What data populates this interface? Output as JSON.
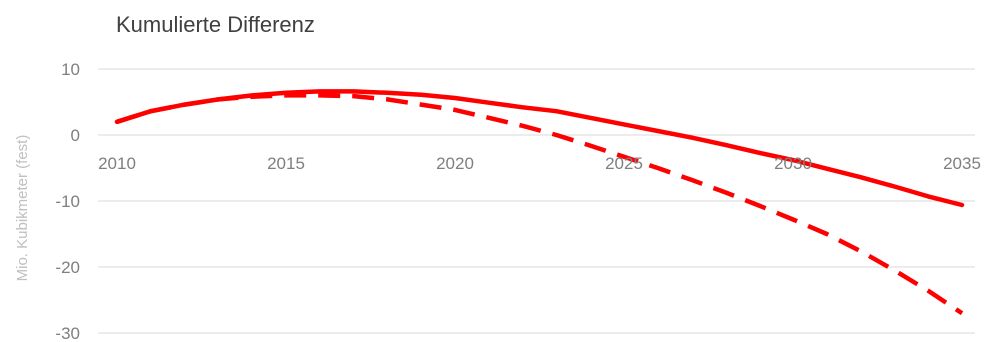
{
  "chart_data": {
    "type": "line",
    "title": "Kumulierte Differenz",
    "xlabel": "",
    "ylabel": "Mio. Kubikmeter (fest)",
    "xlim": [
      2010,
      2035
    ],
    "ylim": [
      -30,
      10
    ],
    "x_ticks": [
      "2010",
      "2015",
      "2020",
      "2025",
      "2030",
      "2035"
    ],
    "y_ticks": [
      "10",
      "0",
      "-10",
      "-20",
      "-30"
    ],
    "grid": "horizontal",
    "legend": "none",
    "x": [
      2010,
      2011,
      2012,
      2013,
      2014,
      2015,
      2016,
      2017,
      2018,
      2019,
      2020,
      2021,
      2022,
      2023,
      2024,
      2025,
      2026,
      2027,
      2028,
      2029,
      2030,
      2031,
      2032,
      2033,
      2034,
      2035
    ],
    "series": [
      {
        "style": "solid",
        "color": "#ff0000",
        "values": [
          2.0,
          3.6,
          4.6,
          5.4,
          6.0,
          6.4,
          6.6,
          6.6,
          6.4,
          6.1,
          5.6,
          4.9,
          4.2,
          3.6,
          2.6,
          1.6,
          0.6,
          -0.4,
          -1.5,
          -2.7,
          -3.8,
          -5.1,
          -6.4,
          -7.8,
          -9.3,
          -10.6
        ]
      },
      {
        "style": "dashed",
        "color": "#ff0000",
        "values": [
          2.0,
          3.6,
          4.6,
          5.4,
          5.8,
          6.0,
          6.0,
          5.9,
          5.4,
          4.6,
          3.8,
          2.6,
          1.4,
          0.0,
          -1.6,
          -3.3,
          -5.0,
          -6.8,
          -8.7,
          -10.7,
          -12.8,
          -15.0,
          -17.6,
          -20.5,
          -23.6,
          -27.0
        ]
      }
    ]
  }
}
